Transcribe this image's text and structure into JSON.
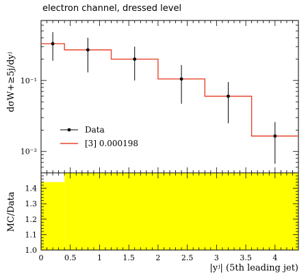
{
  "chart_data": {
    "type": "line",
    "title": "electron channel, dressed level",
    "xlabel": "|yʲ| (5th leading jet)",
    "ylabel": "dσW+≥5j/dyʲ",
    "upper": {
      "yscale": "log",
      "ylim": [
        0.005,
        0.7
      ],
      "ytick_labels": [
        "10⁻¹",
        "10⁻²"
      ],
      "legend_position": "lower-left",
      "series": [
        {
          "name": "Data",
          "kind": "points-with-errors",
          "x": [
            0.2,
            0.8,
            1.6,
            2.4,
            3.2,
            4.0
          ],
          "y": [
            0.33,
            0.27,
            0.2,
            0.105,
            0.06,
            0.0165
          ],
          "yerr_low": [
            0.19,
            0.13,
            0.1,
            0.047,
            0.025,
            0.0067
          ],
          "yerr_high": [
            0.48,
            0.4,
            0.3,
            0.165,
            0.095,
            0.026
          ],
          "color": "#000000"
        },
        {
          "name": "[3] 0.000198",
          "kind": "step",
          "bin_edges": [
            0.0,
            0.4,
            1.2,
            2.0,
            2.8,
            3.6,
            4.4
          ],
          "values": [
            0.33,
            0.27,
            0.2,
            0.105,
            0.06,
            0.0165
          ],
          "color": "#e8432d"
        }
      ]
    },
    "lower": {
      "ylabel": "MC/Data",
      "ylim": [
        1.0,
        1.5
      ],
      "ytick_labels": [
        "1.0",
        "1.1",
        "1.2",
        "1.3",
        "1.4"
      ],
      "band_color": "#ffff00",
      "band_bins": [
        {
          "x0": 0.0,
          "x1": 0.4,
          "y0": 1.0,
          "y1": 1.44
        },
        {
          "x0": 0.4,
          "x1": 4.4,
          "y0": 1.0,
          "y1": 1.5
        }
      ]
    },
    "xlim": [
      0.0,
      4.4
    ],
    "xtick_labels": [
      "0",
      "0.5",
      "1",
      "1.5",
      "2",
      "2.5",
      "3",
      "3.5",
      "4"
    ]
  }
}
